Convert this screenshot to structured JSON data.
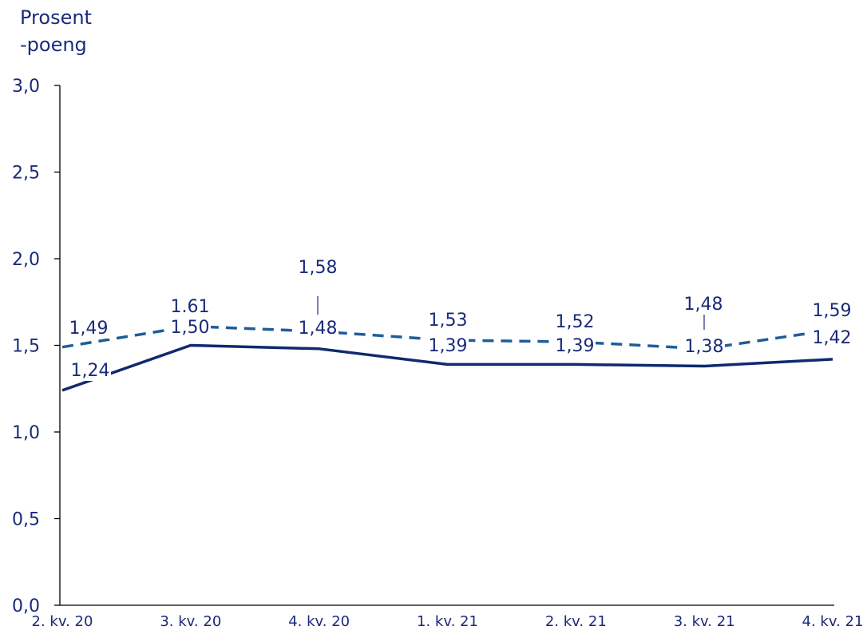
{
  "chart_data": {
    "type": "line",
    "ylabel_lines": [
      "Prosent",
      "-poeng"
    ],
    "categories": [
      "2. kv. 20",
      "3. kv. 20",
      "4. kv. 20",
      "1. kv. 21",
      "2. kv. 21",
      "3. kv. 21",
      "4. kv. 21"
    ],
    "y_ticks": [
      "0,0",
      "0,5",
      "1,0",
      "1,5",
      "2,0",
      "2,5",
      "3,0"
    ],
    "ylim": [
      0,
      3
    ],
    "grid": false,
    "series": [
      {
        "style": "solid",
        "color": "#0f2a6e",
        "values": [
          1.24,
          1.5,
          1.48,
          1.39,
          1.39,
          1.38,
          1.42
        ],
        "labels": [
          "1,24",
          "1,50",
          "1,48",
          "1,39",
          "1,39",
          "1,38",
          "1,42"
        ]
      },
      {
        "style": "dashed",
        "color": "#1f5d9a",
        "values": [
          1.49,
          1.61,
          1.58,
          1.53,
          1.52,
          1.48,
          1.59
        ],
        "labels": [
          "1,49",
          "1.61",
          "1,58",
          "1,53",
          "1,52",
          "1,48",
          "1,59"
        ]
      }
    ]
  }
}
